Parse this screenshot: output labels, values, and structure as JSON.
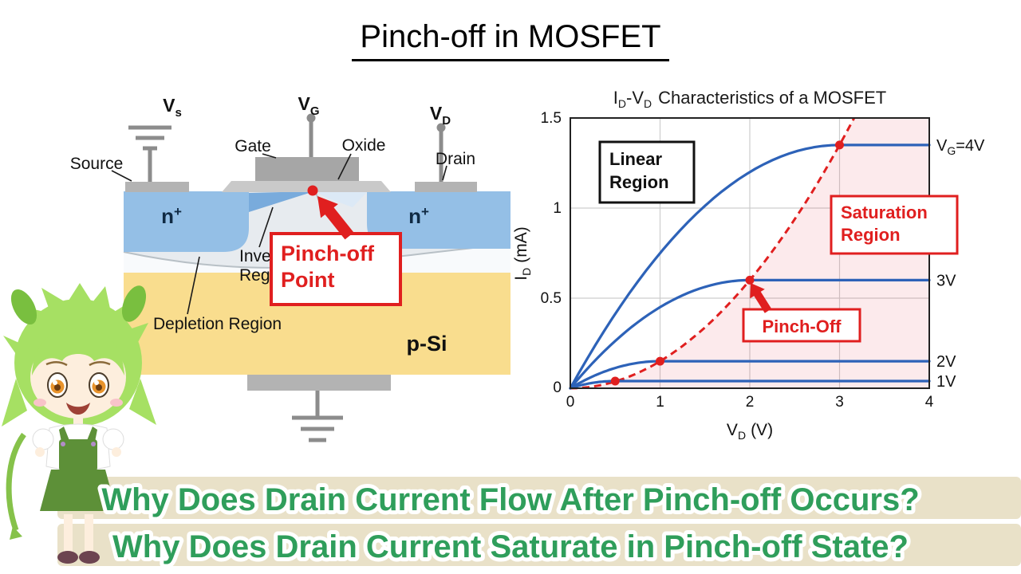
{
  "page_title": "Pinch-off in MOSFET",
  "device": {
    "terminal_vs": {
      "v": "V",
      "sub": "s"
    },
    "terminal_vg": {
      "v": "V",
      "sub": "G"
    },
    "terminal_vd": {
      "v": "V",
      "sub": "D"
    },
    "label_gate": "Gate",
    "label_oxide": "Oxide",
    "label_source": "Source",
    "label_drain": "Drain",
    "label_inversion_l1": "Inversion",
    "label_inversion_l2": "Region",
    "label_depletion": "Depletion Region",
    "label_nplus_left": {
      "n": "n",
      "sup": "+"
    },
    "label_nplus_right": {
      "n": "n",
      "sup": "+"
    },
    "label_psi": "p-Si",
    "callout_pinchoff": {
      "l1": "Pinch-off",
      "l2": "Point"
    }
  },
  "chart": {
    "title": {
      "p1": "I",
      "s1": "D",
      "p2": "-V",
      "s2": "D",
      "p3": "Characteristics of a MOSFET"
    },
    "ylabel": {
      "p1": "I",
      "s1": "D",
      "p2": "(mA)"
    },
    "xlabel": {
      "p1": "V",
      "s1": "D",
      "p2": "(V)"
    },
    "box_linear": {
      "l1": "Linear",
      "l2": "Region"
    },
    "box_saturation": {
      "l1": "Saturation",
      "l2": "Region"
    },
    "box_pinchoff": "Pinch-Off",
    "curve_label_4": {
      "p1": "V",
      "s1": "G",
      "p2": "=4V"
    },
    "curve_label_3": "3V",
    "curve_label_2": "2V",
    "curve_label_1": "1V"
  },
  "chart_data": {
    "type": "line",
    "title": "ID-VD Characteristics of a MOSFET",
    "xlabel": "VD (V)",
    "ylabel": "ID (mA)",
    "xlim": [
      0,
      4
    ],
    "ylim": [
      0,
      1.5
    ],
    "x_ticks": [
      0,
      1,
      2,
      3,
      4
    ],
    "y_ticks": [
      0,
      0.5,
      1,
      1.5
    ],
    "x_tick_labels": [
      "0",
      "1",
      "2",
      "3",
      "4"
    ],
    "y_tick_labels": [
      "0",
      "0.5",
      "1",
      "1.5"
    ],
    "grid": true,
    "series": [
      {
        "name": "VG=4V",
        "vd_sat": 3,
        "id_sat": 1.35
      },
      {
        "name": "VG=3V",
        "vd_sat": 2,
        "id_sat": 0.6
      },
      {
        "name": "VG=2V",
        "vd_sat": 1,
        "id_sat": 0.15
      },
      {
        "name": "VG=1V",
        "vd_sat": 0.5,
        "id_sat": 0.04
      }
    ],
    "saturation_model": "ID = ID_sat*(2*(VD/VD_sat)-(VD/VD_sat)^2) for VD<VD_sat, flat afterwards",
    "pinch_off_locus": {
      "type": "quadratic",
      "coefficient": 0.15
    },
    "pinch_off_points": [
      [
        0.5,
        0.04
      ],
      [
        1,
        0.15
      ],
      [
        2,
        0.6
      ],
      [
        3,
        1.35
      ]
    ],
    "legend_position": "labels at right edge of curves"
  },
  "banner": {
    "line1": "Why Does Drain Current Flow After Pinch-off Occurs?",
    "line2": "Why Does Drain Current Saturate in Pinch-off State?"
  },
  "colors": {
    "curve_blue": "#2d62b8",
    "accent_red": "#e01f1f",
    "saturation_pink": "rgba(228,48,70,0.10)",
    "n_region_blue": "#94bfe6",
    "p_substrate_yellow": "#f9dd8e",
    "metal_gray": "#a6a6a6",
    "banner_bg": "#e9e1c8",
    "banner_text_green": "#2f9e5b"
  }
}
